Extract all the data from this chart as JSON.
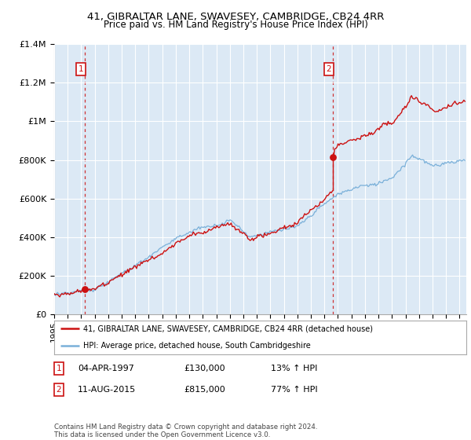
{
  "title_line1": "41, GIBRALTAR LANE, SWAVESEY, CAMBRIDGE, CB24 4RR",
  "title_line2": "Price paid vs. HM Land Registry's House Price Index (HPI)",
  "ylim": [
    0,
    1400000
  ],
  "xlim_start": 1995.0,
  "xlim_end": 2025.5,
  "bg_color": "#dce9f5",
  "grid_color": "#ffffff",
  "sale1_year": 1997.27,
  "sale1_price": 130000,
  "sale2_year": 2015.62,
  "sale2_price": 815000,
  "legend_line1": "41, GIBRALTAR LANE, SWAVESEY, CAMBRIDGE, CB24 4RR (detached house)",
  "legend_line2": "HPI: Average price, detached house, South Cambridgeshire",
  "footer": "Contains HM Land Registry data © Crown copyright and database right 2024.\nThis data is licensed under the Open Government Licence v3.0.",
  "hpi_color": "#7ab0d9",
  "price_color": "#cc1111",
  "dot_color": "#cc1111",
  "ytick_labels": [
    "£0",
    "£200K",
    "£400K",
    "£600K",
    "£800K",
    "£1M",
    "£1.2M",
    "£1.4M"
  ],
  "ytick_values": [
    0,
    200000,
    400000,
    600000,
    800000,
    1000000,
    1200000,
    1400000
  ]
}
